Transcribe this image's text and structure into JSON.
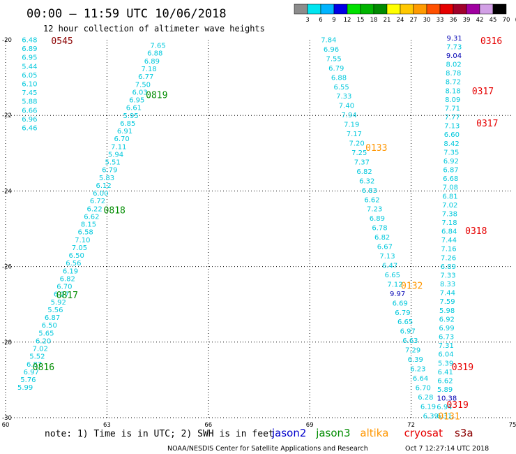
{
  "header": {
    "title": "00:00 — 11:59 UTC 10/06/2018",
    "subtitle": "12 hour collection of altimeter wave heights"
  },
  "legend": {
    "colors": [
      "#8c8c8c",
      "#00e5f0",
      "#00b4ff",
      "#0000e6",
      "#00e000",
      "#00b400",
      "#008a00",
      "#ffff00",
      "#ffc800",
      "#ff9b00",
      "#ff5000",
      "#e60000",
      "#a0002a",
      "#a000a0",
      "#d2a0e6",
      "#000000"
    ],
    "labels": [
      "3",
      "6",
      "9",
      "12",
      "15",
      "18",
      "21",
      "24",
      "27",
      "30",
      "33",
      "36",
      "39",
      "42",
      "45",
      "70",
      "(ft)"
    ]
  },
  "footer": {
    "note": "note: 1) Time is in UTC; 2) SWH is in feet",
    "credit": "NOAA/NESDIS Center for Satellite Applications and Research",
    "timestamp": "Oct  7 12:27:14 UTC 2018"
  },
  "chart_data": {
    "type": "scatter",
    "xlim": [
      60,
      75
    ],
    "ylim": [
      -30,
      -20
    ],
    "x_ticks": [
      60,
      63,
      66,
      69,
      72,
      75
    ],
    "y_ticks": [
      -20,
      -22,
      -24,
      -26,
      -28,
      -30
    ],
    "grid": true,
    "series": [
      {
        "name": "jason2",
        "color": "#0000cc"
      },
      {
        "name": "jason3",
        "color": "#008c00"
      },
      {
        "name": "altika",
        "color": "#ff9600"
      },
      {
        "name": "cryosat",
        "color": "#e60000"
      },
      {
        "name": "s3a",
        "color": "#8b0000"
      }
    ],
    "tracks": [
      {
        "lon_top": 60.48,
        "lat_top": -20.0,
        "lon_bottom": 60.48,
        "lat_bottom": -22.33,
        "values": [
          "6.48",
          "6.89",
          "6.95",
          "5.44",
          "6.05",
          "6.10",
          "7.45",
          "5.88",
          "6.66",
          "6.96",
          "6.46"
        ],
        "colors": [
          "#00c8dc",
          "#00c8dc",
          "#00c8dc",
          "#00c8dc",
          "#00c8dc",
          "#00c8dc",
          "#00c8dc",
          "#00c8dc",
          "#00c8dc",
          "#00c8dc",
          "#00c8dc"
        ]
      },
      {
        "lon_top": 64.28,
        "lat_top": -20.15,
        "lon_bottom": 60.35,
        "lat_bottom": -29.2,
        "values": [
          "7.65",
          "6.88",
          "6.89",
          "7.18",
          "6.77",
          "7.50",
          "6.03",
          "6.95",
          "6.61",
          "5.95",
          "6.85",
          "6.91",
          "6.70",
          "7.11",
          "5.94",
          "5.51",
          "6.79",
          "5.83",
          "6.12",
          "6.00",
          "6.72",
          "6.22",
          "6.62",
          "8.15",
          "6.58",
          "7.10",
          "7.05",
          "6.50",
          "6.56",
          "6.19",
          "6.82",
          "6.70",
          "6.27",
          "5.92",
          "5.56",
          "6.87",
          "6.50",
          "5.65",
          "6.20",
          "7.02",
          "5.52",
          "6.87",
          "6.97",
          "5.76",
          "5.99"
        ],
        "colors": []
      },
      {
        "lon_top": 69.33,
        "lat_top": -20.0,
        "lon_bottom": 72.35,
        "lat_bottom": -29.95,
        "values": [
          "7.84",
          "6.96",
          "7.55",
          "6.79",
          "6.88",
          "6.55",
          "7.33",
          "7.40",
          "7.94",
          "7.19",
          "7.17",
          "7.20",
          "7.25",
          "7.37",
          "6.82",
          "6.32",
          "6.83",
          "6.62",
          "7.23",
          "6.89",
          "6.78",
          "6.82",
          "6.67",
          "7.13",
          "6.47",
          "6.65",
          "7.12",
          "9.97",
          "6.69",
          "6.79",
          "6.65",
          "6.97",
          "6.63",
          "7.29",
          "6.39",
          "6.23",
          "6.64",
          "6.70",
          "6.28",
          "6.19",
          "6.39"
        ],
        "colors": []
      },
      {
        "lon_top": 73.05,
        "lat_top": -19.95,
        "lon_bottom": 72.75,
        "lat_bottom": -29.95,
        "values": [
          "9.31",
          "7.73",
          "9.04",
          "8.02",
          "8.78",
          "8.72",
          "8.18",
          "8.09",
          "7.71",
          "7.77",
          "7.13",
          "6.60",
          "8.42",
          "7.35",
          "6.92",
          "6.87",
          "6.68",
          "7.08",
          "6.81",
          "7.02",
          "7.38",
          "7.18",
          "6.84",
          "7.44",
          "7.16",
          "7.26",
          "6.89",
          "7.33",
          "8.33",
          "7.44",
          "7.59",
          "5.98",
          "6.92",
          "6.99",
          "6.73",
          "7.31",
          "6.04",
          "5.39",
          "6.41",
          "6.62",
          "5.89",
          "10.38",
          "6.94",
          "6.31"
        ],
        "colors": []
      }
    ],
    "pass_labels": [
      {
        "text": "0545",
        "sat": "s3a",
        "lon": 61.35,
        "lat": -20.02
      },
      {
        "text": "0819",
        "sat": "jason3",
        "lon": 64.15,
        "lat": -21.45
      },
      {
        "text": "0818",
        "sat": "jason3",
        "lon": 62.9,
        "lat": -24.5
      },
      {
        "text": "0817",
        "sat": "jason3",
        "lon": 61.5,
        "lat": -26.75
      },
      {
        "text": "0816",
        "sat": "jason3",
        "lon": 60.8,
        "lat": -28.65
      },
      {
        "text": "0133",
        "sat": "altika",
        "lon": 70.65,
        "lat": -22.85
      },
      {
        "text": "0132",
        "sat": "altika",
        "lon": 71.7,
        "lat": -26.5
      },
      {
        "text": "0131",
        "sat": "altika",
        "lon": 72.8,
        "lat": -29.95
      },
      {
        "text": "0316",
        "sat": "cryosat",
        "lon": 74.05,
        "lat": -20.02
      },
      {
        "text": "0317",
        "sat": "cryosat",
        "lon": 73.8,
        "lat": -21.35
      },
      {
        "text": "0317",
        "sat": "cryosat",
        "lon": 73.93,
        "lat": -22.2
      },
      {
        "text": "0318",
        "sat": "cryosat",
        "lon": 73.6,
        "lat": -25.05
      },
      {
        "text": "0319",
        "sat": "cryosat",
        "lon": 73.2,
        "lat": -28.65
      },
      {
        "text": "0319",
        "sat": "cryosat",
        "lon": 73.05,
        "lat": -29.65
      }
    ]
  }
}
